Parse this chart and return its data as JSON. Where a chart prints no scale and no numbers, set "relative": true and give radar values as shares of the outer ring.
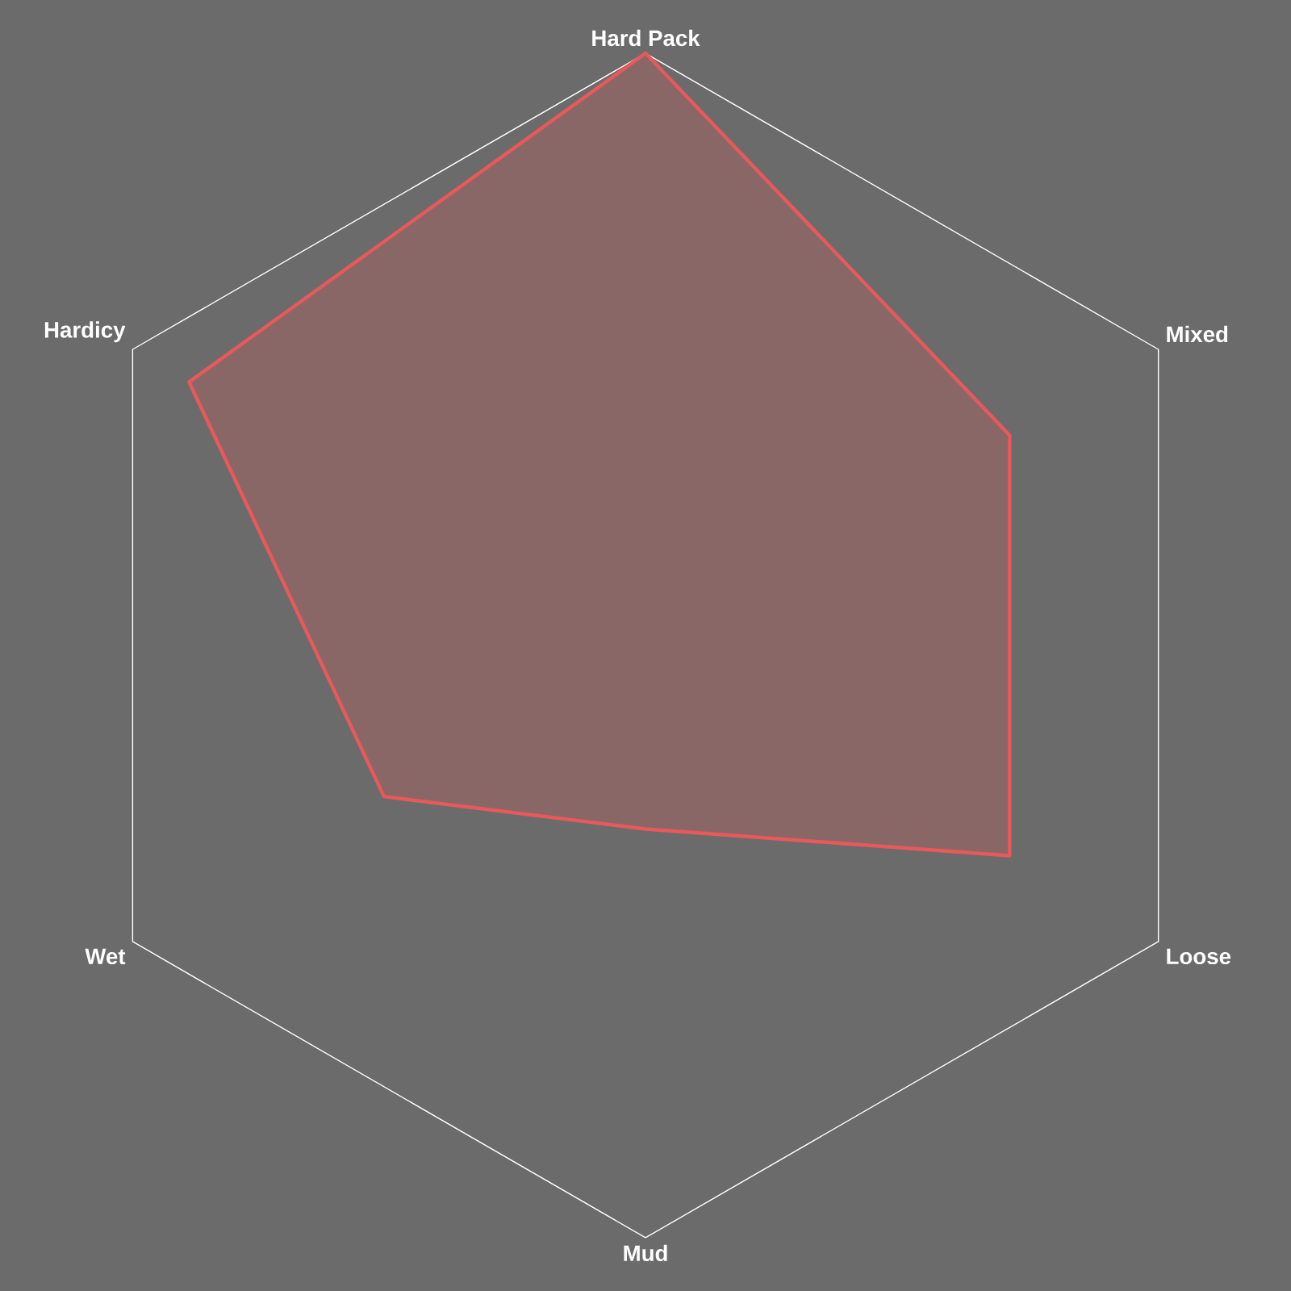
{
  "chart_data": {
    "type": "radar",
    "relative": true,
    "categories": [
      "Hard Pack",
      "Mixed",
      "Loose",
      "Mud",
      "Wet",
      "Hardicy"
    ],
    "series": [
      {
        "color": "#e8595c",
        "values": [
          1.0,
          0.71,
          0.71,
          0.31,
          0.51,
          0.89
        ]
      }
    ]
  }
}
